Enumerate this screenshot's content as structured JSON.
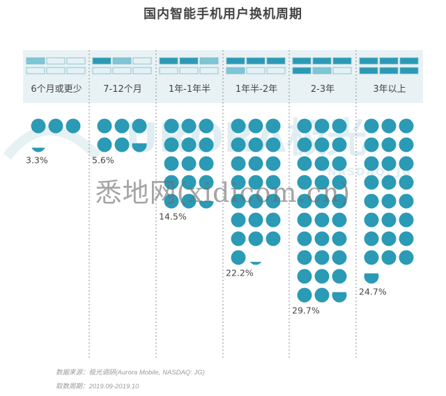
{
  "title": "国内智能手机用户换机周期",
  "footer": {
    "source": "数据来源：极光调研(Aurora Mobile, NASDAQ: JG)",
    "period": "取数周期：2019.09-2019.10"
  },
  "watermarks": {
    "brand": "URORA极光",
    "nasdaq": "NASDAQ: JG",
    "site": "悉地网(xidicom.cn)"
  },
  "colors": {
    "dot": "#2a9ab5",
    "header_bg": "#e8f1f4",
    "icon_dark": "#2a9ab5",
    "icon_mid": "#7ec6d6",
    "icon_light": "#e4f1f5",
    "divider": "#8a8a8a",
    "label_text": "#444444"
  },
  "chart_data": {
    "type": "pictogram",
    "title": "国内智能手机用户换机周期",
    "categories": [
      "6个月或更少",
      "7-12个月",
      "1年-1年半",
      "1年半-2年",
      "2-3年",
      "3年以上"
    ],
    "values": [
      3.3,
      5.6,
      14.5,
      22.2,
      29.7,
      24.7
    ],
    "value_labels": [
      "3.3%",
      "5.6%",
      "14.5%",
      "22.2%",
      "29.7%",
      "24.7%"
    ],
    "unit": "%",
    "dot_grid_columns": 3,
    "legend_icon_filled_cells": [
      1,
      2,
      3,
      4,
      5,
      6
    ]
  }
}
